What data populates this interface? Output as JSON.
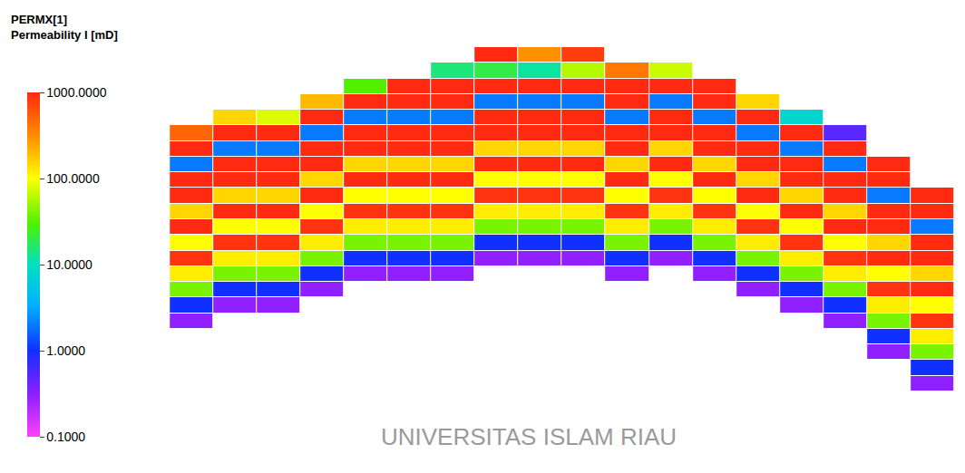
{
  "chart_data": {
    "type": "heatmap",
    "title": "PERMX[1]",
    "subtitle": "Permeability I [mD]",
    "log": true,
    "tick_labels": false,
    "annotations": [
      "UNIVERSITAS ISLAM RIAU"
    ],
    "colorbar": {
      "range": [
        0.1,
        1000
      ],
      "ticks": [
        {
          "value": 0.1,
          "label": "0.1000"
        },
        {
          "value": 1,
          "label": "1.0000"
        },
        {
          "value": 10,
          "label": "10.0000"
        },
        {
          "value": 100,
          "label": "100.0000"
        },
        {
          "value": 1000,
          "label": "1000.0000"
        }
      ]
    },
    "z": [
      [
        null,
        null,
        null,
        null,
        null,
        null,
        null,
        1000,
        300,
        800,
        null,
        null,
        null,
        null,
        null,
        null,
        null,
        null
      ],
      [
        null,
        null,
        null,
        null,
        null,
        null,
        15,
        20,
        12,
        60,
        400,
        70,
        null,
        null,
        null,
        null,
        null,
        null
      ],
      [
        null,
        null,
        null,
        null,
        30,
        1000,
        1000,
        1000,
        1000,
        1000,
        1000,
        1000,
        1000,
        null,
        null,
        null,
        null,
        null
      ],
      [
        null,
        null,
        null,
        200,
        1000,
        1000,
        1000,
        2,
        2,
        2,
        1000,
        2,
        1000,
        150,
        null,
        null,
        null,
        null
      ],
      [
        null,
        150,
        80,
        1000,
        2,
        2,
        2,
        1000,
        1000,
        1000,
        2,
        1000,
        2,
        1000,
        8,
        null,
        null,
        null
      ],
      [
        500,
        1000,
        1000,
        2,
        1000,
        1000,
        1000,
        1000,
        1000,
        1000,
        1000,
        1000,
        1000,
        2,
        1000,
        0.5,
        null,
        null
      ],
      [
        1000,
        2,
        2,
        1000,
        1000,
        1000,
        1000,
        150,
        150,
        150,
        1000,
        150,
        1000,
        1000,
        2,
        1000,
        null,
        null
      ],
      [
        2,
        1000,
        1000,
        1000,
        150,
        150,
        150,
        1000,
        1000,
        1000,
        150,
        1000,
        150,
        1000,
        1000,
        2,
        1000,
        null
      ],
      [
        1000,
        1000,
        1000,
        150,
        1000,
        1000,
        1000,
        100,
        100,
        100,
        1000,
        100,
        1000,
        150,
        1000,
        1000,
        1000,
        null
      ],
      [
        1000,
        150,
        150,
        1000,
        100,
        100,
        100,
        900,
        900,
        900,
        100,
        900,
        100,
        1000,
        150,
        1000,
        2,
        1000
      ],
      [
        150,
        1000,
        1000,
        100,
        900,
        900,
        900,
        120,
        120,
        120,
        900,
        120,
        900,
        100,
        1000,
        150,
        1000,
        1000
      ],
      [
        1000,
        100,
        100,
        900,
        120,
        120,
        120,
        40,
        40,
        40,
        120,
        40,
        120,
        900,
        100,
        1000,
        1000,
        2
      ],
      [
        100,
        900,
        900,
        120,
        40,
        40,
        40,
        1,
        1,
        1,
        40,
        1,
        40,
        120,
        900,
        100,
        150,
        1000
      ],
      [
        900,
        120,
        120,
        40,
        1,
        1,
        1,
        0.3,
        0.3,
        0.3,
        1,
        0.3,
        1,
        40,
        120,
        900,
        1000,
        1000
      ],
      [
        120,
        40,
        40,
        1,
        0.3,
        0.3,
        0.3,
        null,
        null,
        null,
        0.3,
        null,
        0.3,
        1,
        40,
        120,
        100,
        150
      ],
      [
        40,
        1,
        1,
        0.3,
        null,
        null,
        null,
        null,
        null,
        null,
        null,
        null,
        null,
        0.3,
        1,
        40,
        900,
        1000
      ],
      [
        1,
        0.3,
        0.3,
        null,
        null,
        null,
        null,
        null,
        null,
        null,
        null,
        null,
        null,
        null,
        0.3,
        1,
        120,
        100
      ],
      [
        0.3,
        null,
        null,
        null,
        null,
        null,
        null,
        null,
        null,
        null,
        null,
        null,
        null,
        null,
        null,
        0.3,
        40,
        900
      ],
      [
        null,
        null,
        null,
        null,
        null,
        null,
        null,
        null,
        null,
        null,
        null,
        null,
        null,
        null,
        null,
        null,
        1,
        120
      ],
      [
        null,
        null,
        null,
        null,
        null,
        null,
        null,
        null,
        null,
        null,
        null,
        null,
        null,
        null,
        null,
        null,
        0.3,
        40
      ],
      [
        null,
        null,
        null,
        null,
        null,
        null,
        null,
        null,
        null,
        null,
        null,
        null,
        null,
        null,
        null,
        null,
        null,
        1
      ],
      [
        null,
        null,
        null,
        null,
        null,
        null,
        null,
        null,
        null,
        null,
        null,
        null,
        null,
        null,
        null,
        null,
        null,
        0.3
      ]
    ]
  }
}
